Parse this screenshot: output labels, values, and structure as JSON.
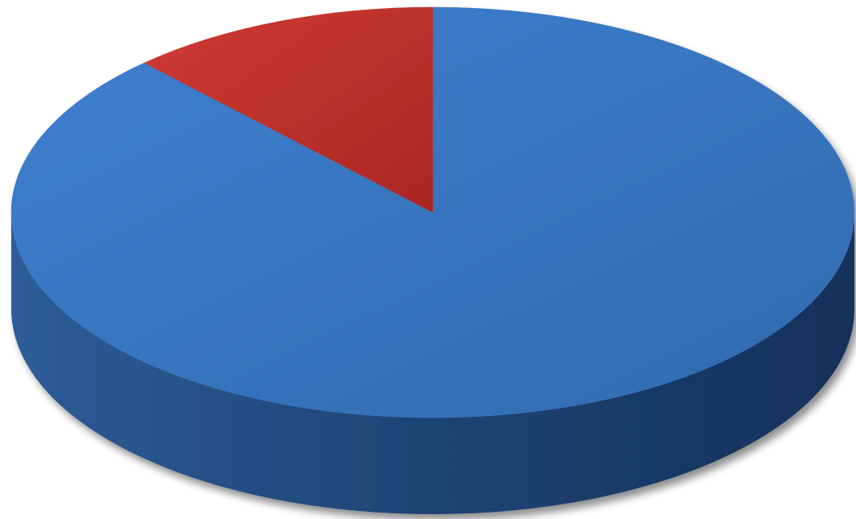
{
  "chart_data": {
    "type": "pie",
    "style": "3d",
    "title": "",
    "categories": [
      "",
      ""
    ],
    "values": [
      88,
      12
    ],
    "colors": [
      "#3a78c6",
      "#c0332e"
    ],
    "start_angle_deg": 0,
    "direction": "clockwise",
    "legend": "none",
    "data_labels": false
  }
}
